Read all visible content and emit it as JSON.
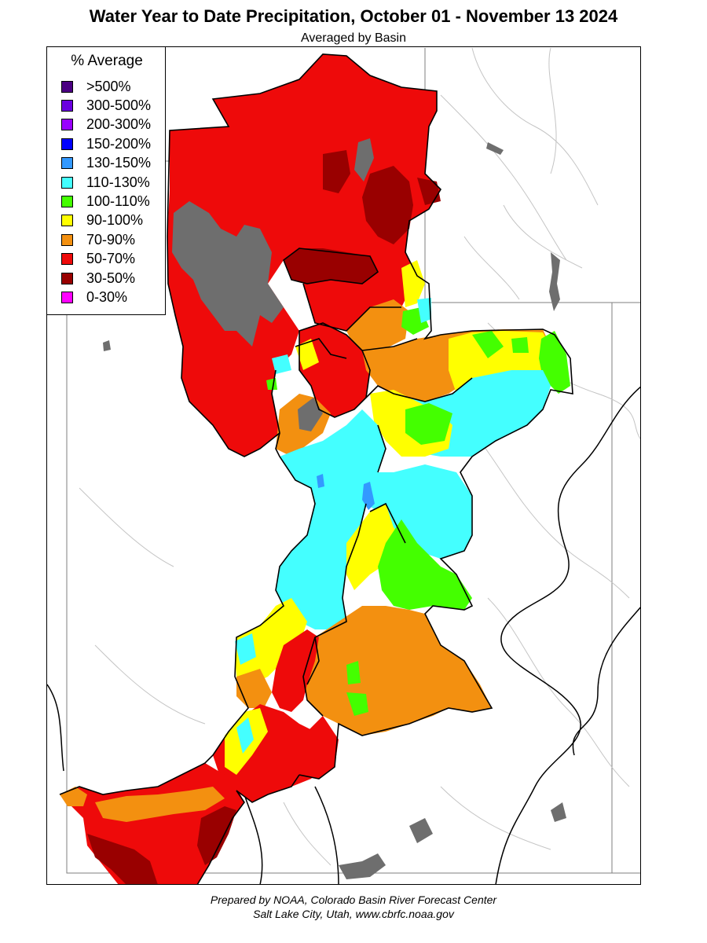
{
  "header": {
    "title": "Water Year to Date Precipitation, October 01  - November 13 2024",
    "subtitle": "Averaged by Basin"
  },
  "legend": {
    "title": "% Average",
    "items": [
      {
        "label": ">500%",
        "color": "#4b0082"
      },
      {
        "label": "300-500%",
        "color": "#6a00e0"
      },
      {
        "label": "200-300%",
        "color": "#9900ff"
      },
      {
        "label": "150-200%",
        "color": "#0000ff"
      },
      {
        "label": "130-150%",
        "color": "#3399ff"
      },
      {
        "label": "110-130%",
        "color": "#44ffff"
      },
      {
        "label": "100-110%",
        "color": "#44ff00"
      },
      {
        "label": "90-100%",
        "color": "#ffff00"
      },
      {
        "label": "70-90%",
        "color": "#f39010"
      },
      {
        "label": "50-70%",
        "color": "#ee0a0a"
      },
      {
        "label": "30-50%",
        "color": "#990000"
      },
      {
        "label": "0-30%",
        "color": "#ff00ff"
      }
    ]
  },
  "map": {
    "lake_color": "#6e6e6e",
    "boundary_color": "#000000",
    "river_color": "#bdbdbd"
  },
  "footer": {
    "line1": "Prepared by NOAA, Colorado Basin River Forecast Center",
    "line2": "Salt Lake City, Utah, www.cbrfc.noaa.gov"
  }
}
